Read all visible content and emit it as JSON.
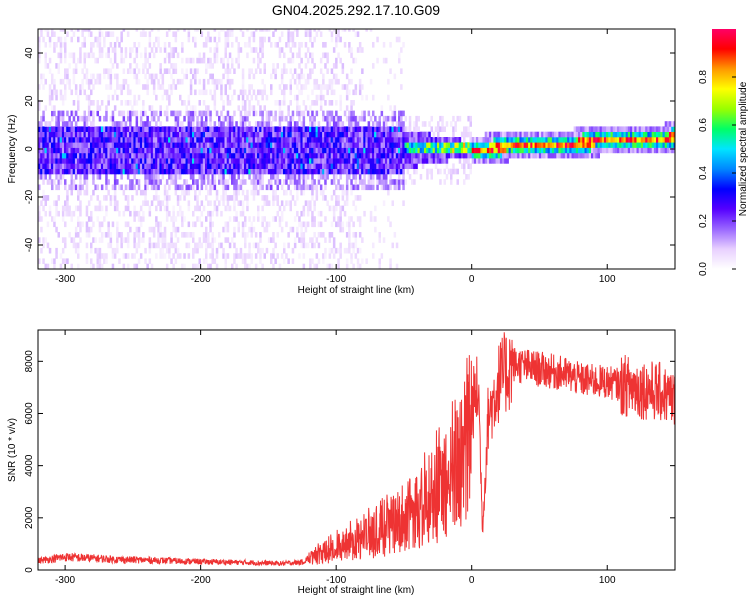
{
  "title": "GN04.2025.292.17.10.G09",
  "chart_data": [
    {
      "type": "heatmap",
      "title": "GN04.2025.292.17.10.G09",
      "xlabel": "Height of straight line (km)",
      "ylabel": "Frequency (Hz)",
      "xlim": [
        -320,
        150
      ],
      "ylim": [
        -50,
        50
      ],
      "xticks": [
        -300,
        -200,
        -100,
        0,
        100
      ],
      "yticks": [
        -40,
        -20,
        0,
        20,
        40
      ],
      "colorbar": {
        "label": "Normalized spectral amplitude",
        "range": [
          0.0,
          1.0
        ],
        "ticks": [
          0.0,
          0.2,
          0.4,
          0.6,
          0.8
        ],
        "tick_labels": [
          "0.0",
          "0.2",
          "0.4",
          "0.6",
          "0.8"
        ],
        "colormap": [
          "#ffffff",
          "#e8d0ff",
          "#9966ff",
          "#5500ff",
          "#0000ff",
          "#0088ff",
          "#00e5ff",
          "#00ff66",
          "#99ff00",
          "#ffff00",
          "#ff9900",
          "#ff0000",
          "#ff0066"
        ]
      },
      "regions": [
        {
          "description": "sparse noise",
          "x_range": [
            -320,
            -80
          ],
          "freq_range": [
            -50,
            50
          ],
          "amplitude": 0.05
        },
        {
          "description": "broad noisy band",
          "x_range": [
            -320,
            -50
          ],
          "freq_range": [
            -10,
            10
          ],
          "amplitude": 0.2
        },
        {
          "description": "narrowing band",
          "x_range": [
            -50,
            0
          ],
          "freq_range": [
            -4,
            4
          ],
          "amplitude": 0.5
        },
        {
          "description": "strong narrow signal",
          "x_range": [
            0,
            150
          ],
          "freq_center_start": 0,
          "freq_center_end": 5,
          "amplitude": 0.9
        }
      ]
    },
    {
      "type": "line",
      "xlabel": "Height of straight line (km)",
      "ylabel": "SNR (10 * v/v)",
      "xlim": [
        -320,
        150
      ],
      "ylim": [
        0,
        9200
      ],
      "xticks": [
        -300,
        -200,
        -100,
        0,
        100
      ],
      "yticks": [
        0,
        2000,
        4000,
        6000,
        8000
      ],
      "color": "#ee3333",
      "series": [
        {
          "name": "SNR",
          "x": [
            -320,
            -300,
            -280,
            -260,
            -240,
            -220,
            -200,
            -180,
            -160,
            -140,
            -125,
            -115,
            -100,
            -80,
            -60,
            -40,
            -20,
            -10,
            0,
            5,
            8,
            12,
            20,
            30,
            40,
            50,
            60,
            70,
            80,
            100,
            120,
            140,
            150
          ],
          "y": [
            350,
            500,
            450,
            400,
            380,
            350,
            320,
            300,
            280,
            250,
            300,
            600,
            900,
            1300,
            1800,
            2500,
            3500,
            4200,
            6200,
            7000,
            1500,
            5800,
            7200,
            7900,
            7800,
            7700,
            7600,
            7500,
            7300,
            7200,
            7000,
            6800,
            6500
          ]
        }
      ]
    }
  ]
}
